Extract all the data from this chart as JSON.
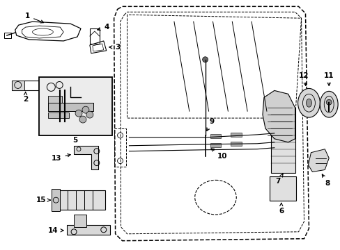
{
  "background_color": "#ffffff",
  "fig_width": 4.89,
  "fig_height": 3.6,
  "dpi": 100,
  "line_color": "#000000",
  "label_color": "#000000"
}
